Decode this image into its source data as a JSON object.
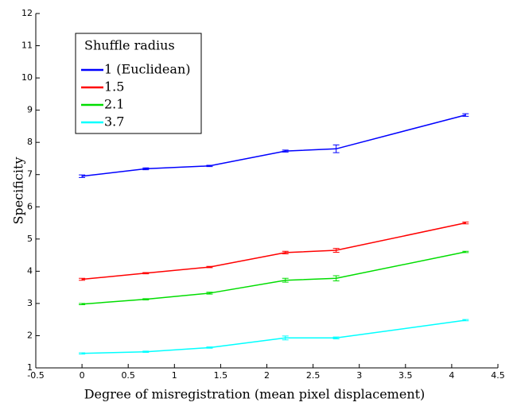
{
  "chart_data": {
    "type": "line",
    "xlabel": "Degree of misregistration (mean pixel displacement)",
    "ylabel": "Specificity",
    "legend_title": "Shuffle radius",
    "legend": "upper left",
    "x": [
      0,
      0.69,
      1.38,
      2.2,
      2.75,
      4.15
    ],
    "series": [
      {
        "name": "1 (Euclidean)",
        "color": "#0000ff",
        "values": [
          6.95,
          7.18,
          7.27,
          7.73,
          7.8,
          8.85
        ],
        "errors": [
          0.04,
          0.03,
          0.02,
          0.03,
          0.12,
          0.04
        ]
      },
      {
        "name": "1.5",
        "color": "#ff0000",
        "values": [
          3.75,
          3.94,
          4.13,
          4.58,
          4.65,
          5.5
        ],
        "errors": [
          0.03,
          0.02,
          0.02,
          0.04,
          0.06,
          0.03
        ]
      },
      {
        "name": "2.1",
        "color": "#00dd00",
        "values": [
          2.98,
          3.13,
          3.32,
          3.72,
          3.78,
          4.6
        ],
        "errors": [
          0.02,
          0.02,
          0.03,
          0.06,
          0.08,
          0.02
        ]
      },
      {
        "name": "3.7",
        "color": "#00ffff",
        "values": [
          1.45,
          1.5,
          1.63,
          1.93,
          1.93,
          2.48
        ],
        "errors": [
          0.02,
          0.02,
          0.02,
          0.06,
          0.03,
          0.02
        ]
      }
    ],
    "xlim": [
      -0.5,
      4.5
    ],
    "xticks": [
      -0.5,
      0,
      0.5,
      1,
      1.5,
      2,
      2.5,
      3,
      3.5,
      4,
      4.5
    ],
    "ylim": [
      1,
      12
    ],
    "yticks": [
      1,
      2,
      3,
      4,
      5,
      6,
      7,
      8,
      9,
      10,
      11,
      12
    ],
    "grid": false
  }
}
